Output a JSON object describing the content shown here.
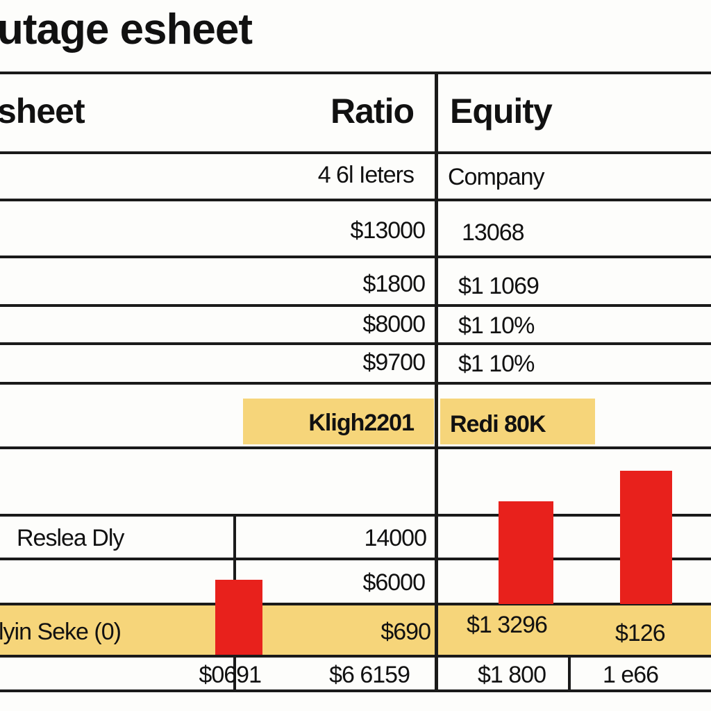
{
  "title": "utage esheet",
  "header": {
    "left": "sheet",
    "ratio": "Ratio",
    "equity": "Equity"
  },
  "subheader": {
    "ratio": "4 6l Ieters",
    "equity": "Company"
  },
  "rows": [
    [
      "$13000",
      "13068"
    ],
    [
      "$1800",
      "$1 1069"
    ],
    [
      "$8000",
      "$1 10%"
    ],
    [
      "$9700",
      "$1 10%"
    ]
  ],
  "highlight": {
    "ratio": "Kligh2201",
    "equity": "Redi 80K"
  },
  "lower": {
    "label": "Reslea Dly",
    "values": [
      "14000",
      "$6000"
    ]
  },
  "summary": {
    "label": "lyin Seke (0)",
    "values": [
      "$690",
      "$1 3296",
      "$126"
    ]
  },
  "footer": [
    "$0691",
    "$6 6159",
    "$1 800",
    "1 e66"
  ]
}
